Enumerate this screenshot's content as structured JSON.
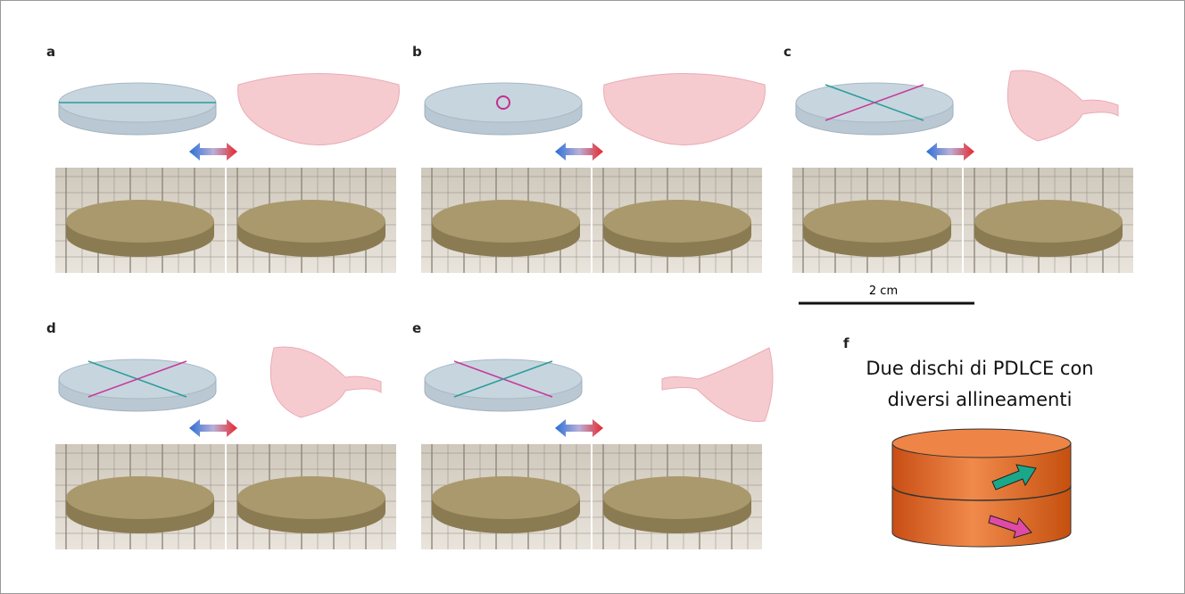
{
  "panel_labels": [
    "a",
    "b",
    "c",
    "d",
    "e",
    "f"
  ],
  "scale_bar_label": "2 cm",
  "caption_lines": [
    "Due dischi di PDLCE con",
    "diversi allineamenti"
  ]
}
